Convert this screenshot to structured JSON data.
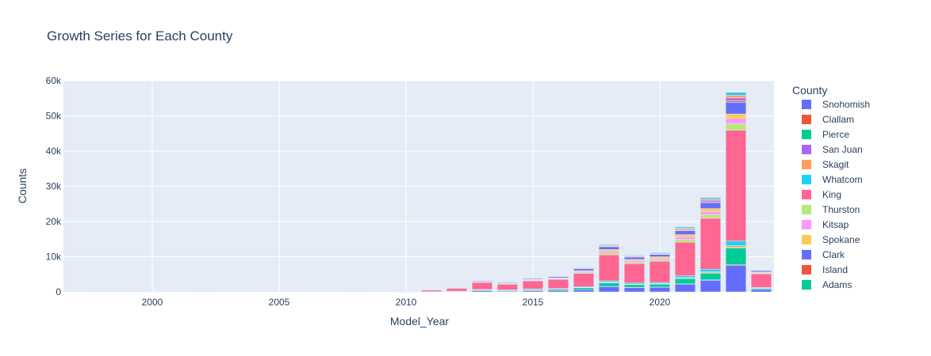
{
  "chart_data": {
    "type": "bar",
    "barmode": "stack",
    "title": "Growth Series for Each County",
    "xlabel": "Model_Year",
    "ylabel": "Counts",
    "xlim": [
      1996.5,
      2024.5
    ],
    "ylim": [
      0,
      60000
    ],
    "x_ticks": [
      2000,
      2005,
      2010,
      2015,
      2020
    ],
    "x_tick_labels": [
      "2000",
      "2005",
      "2010",
      "2015",
      "2020"
    ],
    "y_ticks": [
      0,
      10000,
      20000,
      30000,
      40000,
      50000,
      60000
    ],
    "y_tick_labels": [
      "0",
      "10k",
      "20k",
      "30k",
      "40k",
      "50k",
      "60k"
    ],
    "grid": true,
    "legend": {
      "title": "County",
      "position": "right"
    },
    "x": [
      1998,
      1999,
      2000,
      2002,
      2008,
      2010,
      2011,
      2012,
      2013,
      2014,
      2015,
      2016,
      2017,
      2018,
      2019,
      2020,
      2021,
      2022,
      2023,
      2024
    ],
    "series": [
      {
        "name": "Snohomish",
        "color": "#636efa",
        "values": [
          0,
          0,
          0,
          0,
          0,
          10,
          40,
          90,
          280,
          220,
          340,
          380,
          620,
          1500,
          1200,
          1300,
          2200,
          3300,
          7500,
          700
        ]
      },
      {
        "name": "Clallam",
        "color": "#EF553B",
        "values": [
          0,
          0,
          0,
          0,
          0,
          0,
          5,
          10,
          20,
          20,
          30,
          30,
          40,
          70,
          60,
          60,
          90,
          120,
          200,
          30
        ]
      },
      {
        "name": "Pierce",
        "color": "#00cc96",
        "values": [
          0,
          0,
          0,
          0,
          0,
          5,
          30,
          60,
          260,
          220,
          300,
          330,
          500,
          1000,
          800,
          850,
          1500,
          1900,
          4800,
          300
        ]
      },
      {
        "name": "San Juan",
        "color": "#ab63fa",
        "values": [
          0,
          0,
          0,
          0,
          0,
          0,
          5,
          10,
          20,
          20,
          30,
          30,
          40,
          60,
          50,
          50,
          70,
          100,
          150,
          20
        ]
      },
      {
        "name": "Skagit",
        "color": "#FFA15A",
        "values": [
          0,
          0,
          0,
          0,
          0,
          0,
          5,
          15,
          40,
          30,
          50,
          60,
          90,
          160,
          130,
          140,
          220,
          300,
          500,
          60
        ]
      },
      {
        "name": "Whatcom",
        "color": "#19d3f3",
        "values": [
          0,
          0,
          0,
          0,
          0,
          5,
          20,
          40,
          80,
          70,
          100,
          120,
          200,
          350,
          300,
          300,
          550,
          700,
          1300,
          150
        ]
      },
      {
        "name": "King",
        "color": "#FF6692",
        "values": [
          50,
          30,
          60,
          50,
          50,
          120,
          450,
          800,
          2000,
          1600,
          2300,
          2600,
          3800,
          7400,
          5500,
          6000,
          9500,
          14500,
          31500,
          3900
        ]
      },
      {
        "name": "Thurston",
        "color": "#B6E880",
        "values": [
          0,
          0,
          0,
          0,
          0,
          5,
          15,
          30,
          120,
          100,
          150,
          170,
          280,
          500,
          400,
          420,
          800,
          1000,
          1900,
          200
        ]
      },
      {
        "name": "Kitsap",
        "color": "#FF97FF",
        "values": [
          0,
          0,
          0,
          0,
          0,
          5,
          15,
          30,
          100,
          90,
          130,
          150,
          250,
          500,
          400,
          420,
          700,
          900,
          1400,
          150
        ]
      },
      {
        "name": "Spokane",
        "color": "#FECB52",
        "values": [
          0,
          0,
          0,
          0,
          0,
          5,
          15,
          30,
          100,
          90,
          130,
          150,
          250,
          500,
          400,
          450,
          650,
          850,
          1300,
          150
        ]
      },
      {
        "name": "Clark",
        "color": "#636efa",
        "values": [
          0,
          0,
          0,
          0,
          0,
          5,
          30,
          60,
          200,
          180,
          250,
          300,
          550,
          800,
          650,
          650,
          1100,
          1700,
          3300,
          400
        ]
      },
      {
        "name": "Island",
        "color": "#EF553B",
        "values": [
          0,
          0,
          0,
          0,
          0,
          0,
          5,
          10,
          30,
          30,
          40,
          50,
          80,
          120,
          100,
          100,
          160,
          220,
          400,
          50
        ]
      },
      {
        "name": "Adams",
        "color": "#00cc96",
        "values": [
          0,
          0,
          0,
          0,
          0,
          0,
          0,
          2,
          5,
          5,
          5,
          5,
          10,
          10,
          10,
          10,
          15,
          20,
          30,
          5
        ]
      },
      {
        "name": "",
        "color": "#ab63fa",
        "values": [
          0,
          0,
          0,
          0,
          0,
          5,
          10,
          20,
          60,
          50,
          70,
          80,
          120,
          200,
          170,
          180,
          300,
          400,
          800,
          80
        ]
      },
      {
        "name": "",
        "color": "#FFA15A",
        "values": [
          0,
          0,
          0,
          0,
          0,
          5,
          10,
          20,
          60,
          50,
          70,
          80,
          120,
          200,
          170,
          180,
          300,
          400,
          800,
          80
        ]
      },
      {
        "name": "",
        "color": "#19d3f3",
        "values": [
          0,
          0,
          0,
          0,
          0,
          5,
          10,
          20,
          60,
          50,
          70,
          80,
          120,
          200,
          170,
          180,
          300,
          400,
          800,
          80
        ]
      }
    ]
  }
}
